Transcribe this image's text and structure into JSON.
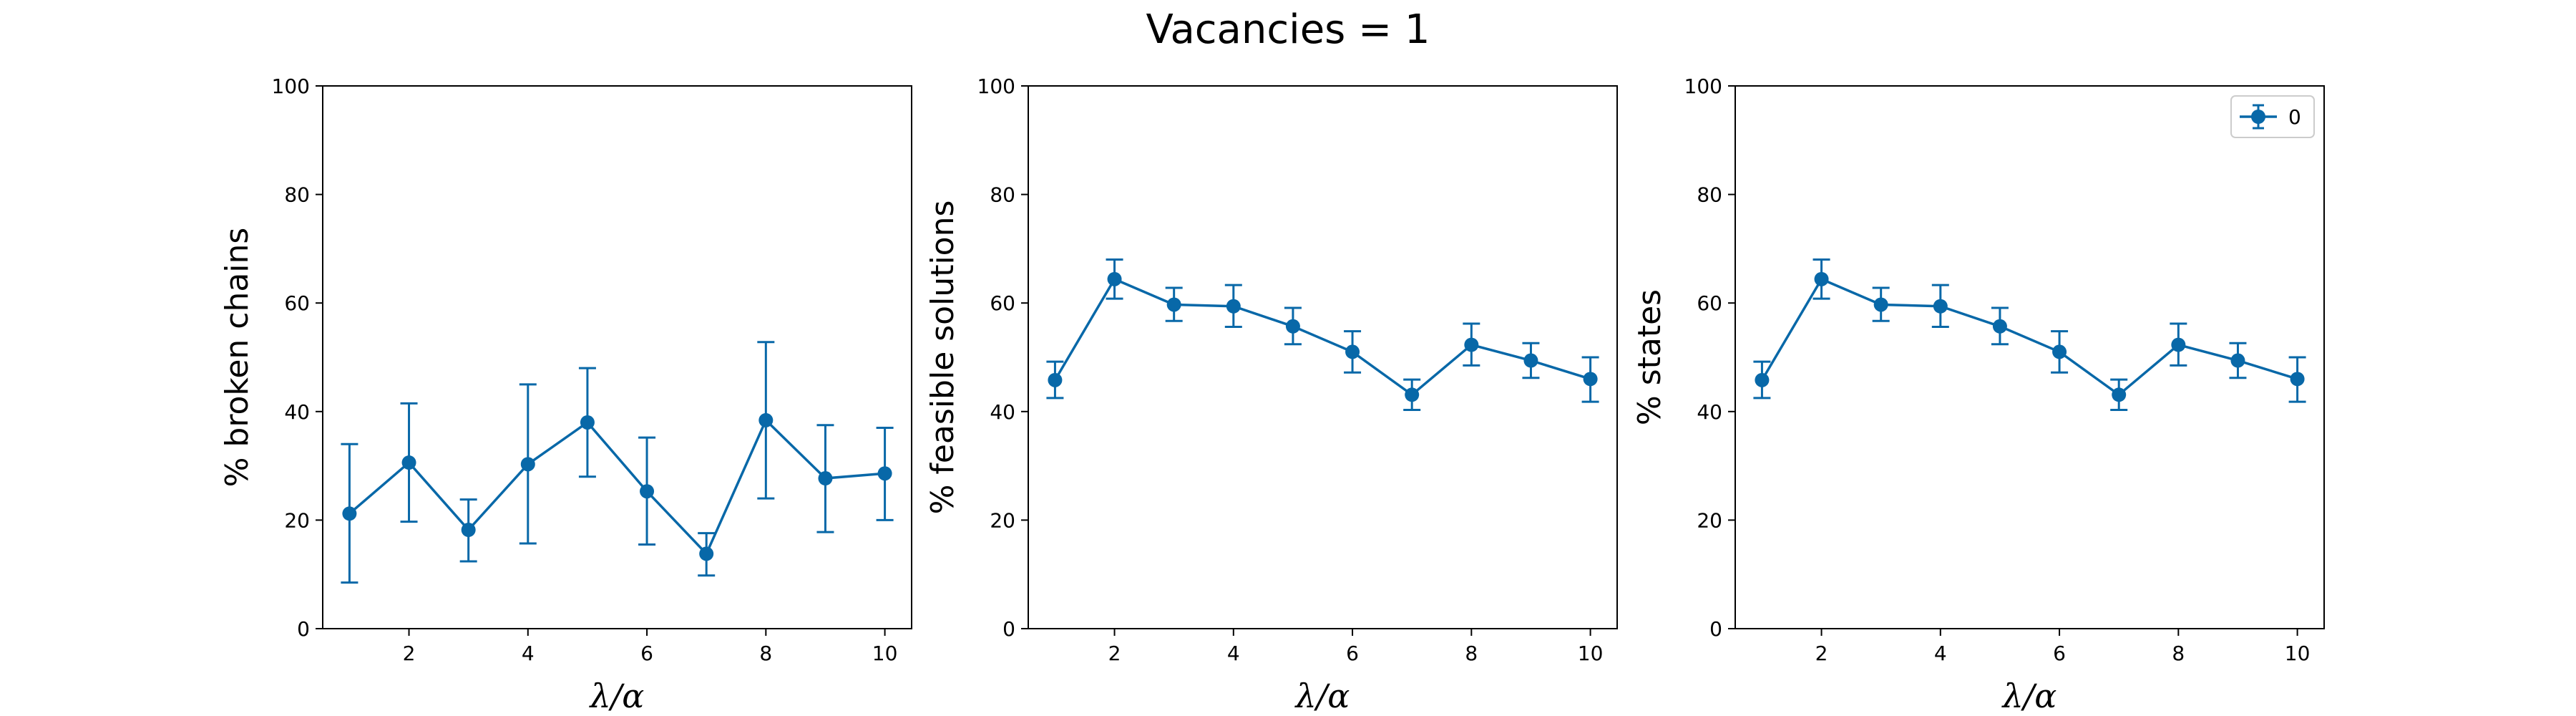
{
  "figure": {
    "title": "Vacancies = 1",
    "series_color": "#0868a8"
  },
  "chart_data": [
    {
      "type": "line",
      "error_bars": true,
      "x": [
        1,
        2,
        3,
        4,
        5,
        6,
        7,
        8,
        9,
        10
      ],
      "series": [
        {
          "values": [
            21.2,
            30.6,
            18.2,
            30.3,
            38.0,
            25.3,
            13.8,
            38.4,
            27.7,
            28.6
          ],
          "err_low": [
            8.5,
            19.7,
            12.4,
            15.7,
            28.0,
            15.5,
            9.8,
            24.0,
            17.8,
            20.0
          ],
          "err_high": [
            34.0,
            41.5,
            23.8,
            45.0,
            48.0,
            35.2,
            17.6,
            52.8,
            37.5,
            37.0
          ]
        }
      ],
      "xlabel": "λ/α",
      "ylabel": "% broken chains",
      "xlim": [
        0.55,
        10.45
      ],
      "ylim": [
        0,
        100
      ],
      "xticks": [
        2,
        4,
        6,
        8,
        10
      ],
      "yticks": [
        0,
        20,
        40,
        60,
        80,
        100
      ],
      "grid": false
    },
    {
      "type": "line",
      "error_bars": true,
      "x": [
        1,
        2,
        3,
        4,
        5,
        6,
        7,
        8,
        9,
        10
      ],
      "series": [
        {
          "values": [
            45.8,
            64.4,
            59.7,
            59.4,
            55.7,
            51.0,
            43.1,
            52.3,
            49.4,
            46.0
          ],
          "err_low": [
            42.5,
            60.8,
            56.7,
            55.6,
            52.4,
            47.2,
            40.3,
            48.5,
            46.2,
            41.8
          ],
          "err_high": [
            49.2,
            68.0,
            62.8,
            63.3,
            59.1,
            54.8,
            45.9,
            56.2,
            52.6,
            50.0
          ]
        }
      ],
      "xlabel": "λ/α",
      "ylabel": "% feasible solutions",
      "xlim": [
        0.55,
        10.45
      ],
      "ylim": [
        0,
        100
      ],
      "xticks": [
        2,
        4,
        6,
        8,
        10
      ],
      "yticks": [
        0,
        20,
        40,
        60,
        80,
        100
      ],
      "grid": false
    },
    {
      "type": "line",
      "error_bars": true,
      "x": [
        1,
        2,
        3,
        4,
        5,
        6,
        7,
        8,
        9,
        10
      ],
      "series": [
        {
          "name": "0",
          "values": [
            45.8,
            64.4,
            59.7,
            59.4,
            55.7,
            51.0,
            43.1,
            52.3,
            49.4,
            46.0
          ],
          "err_low": [
            42.5,
            60.8,
            56.7,
            55.6,
            52.4,
            47.2,
            40.3,
            48.5,
            46.2,
            41.8
          ],
          "err_high": [
            49.2,
            68.0,
            62.8,
            63.3,
            59.1,
            54.8,
            45.9,
            56.2,
            52.6,
            50.0
          ]
        }
      ],
      "xlabel": "λ/α",
      "ylabel": "% states",
      "xlim": [
        0.55,
        10.45
      ],
      "ylim": [
        0,
        100
      ],
      "xticks": [
        2,
        4,
        6,
        8,
        10
      ],
      "yticks": [
        0,
        20,
        40,
        60,
        80,
        100
      ],
      "grid": false,
      "legend": "top-right"
    }
  ]
}
